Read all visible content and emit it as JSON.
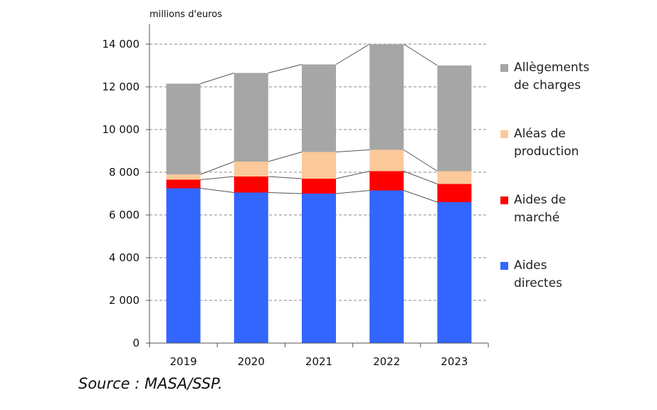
{
  "chart_data": {
    "type": "bar",
    "stacked": true,
    "unit_label": "millions d'euros",
    "categories": [
      "2019",
      "2020",
      "2021",
      "2022",
      "2023"
    ],
    "series": [
      {
        "name": "Aides directes",
        "color": "#3366ff",
        "values": [
          7250,
          7050,
          7000,
          7150,
          6600
        ]
      },
      {
        "name": "Aides de marché",
        "color": "#ff0000",
        "values": [
          400,
          750,
          700,
          900,
          850
        ]
      },
      {
        "name": "Aléas de production",
        "color": "#fbc99a",
        "values": [
          250,
          700,
          1250,
          1000,
          600
        ]
      },
      {
        "name": "Allègements de charges",
        "color": "#a6a6a6",
        "values": [
          4250,
          4150,
          4100,
          4950,
          4950
        ]
      }
    ],
    "legend": {
      "placement": "right",
      "order": [
        "Allègements de charges",
        "Aléas de production",
        "Aides de marché",
        "Aides directes"
      ],
      "entries": [
        {
          "lines": [
            "Allègements",
            "de charges"
          ],
          "color": "#a6a6a6"
        },
        {
          "lines": [
            "Aléas de",
            "production"
          ],
          "color": "#fbc99a"
        },
        {
          "lines": [
            "Aides de",
            "marché"
          ],
          "color": "#ff0000"
        },
        {
          "lines": [
            "Aides",
            "directes"
          ],
          "color": "#3366ff"
        }
      ]
    },
    "ylim": [
      0,
      14000
    ],
    "yticks": [
      0,
      2000,
      4000,
      6000,
      8000,
      10000,
      12000,
      14000
    ],
    "ytick_labels": [
      "0",
      "2 000",
      "4 000",
      "6 000",
      "8 000",
      "10 000",
      "12 000",
      "14 000"
    ],
    "grid": "horizontal dashed",
    "series_connector_lines": true
  },
  "source": "Source : MASA/SSP."
}
